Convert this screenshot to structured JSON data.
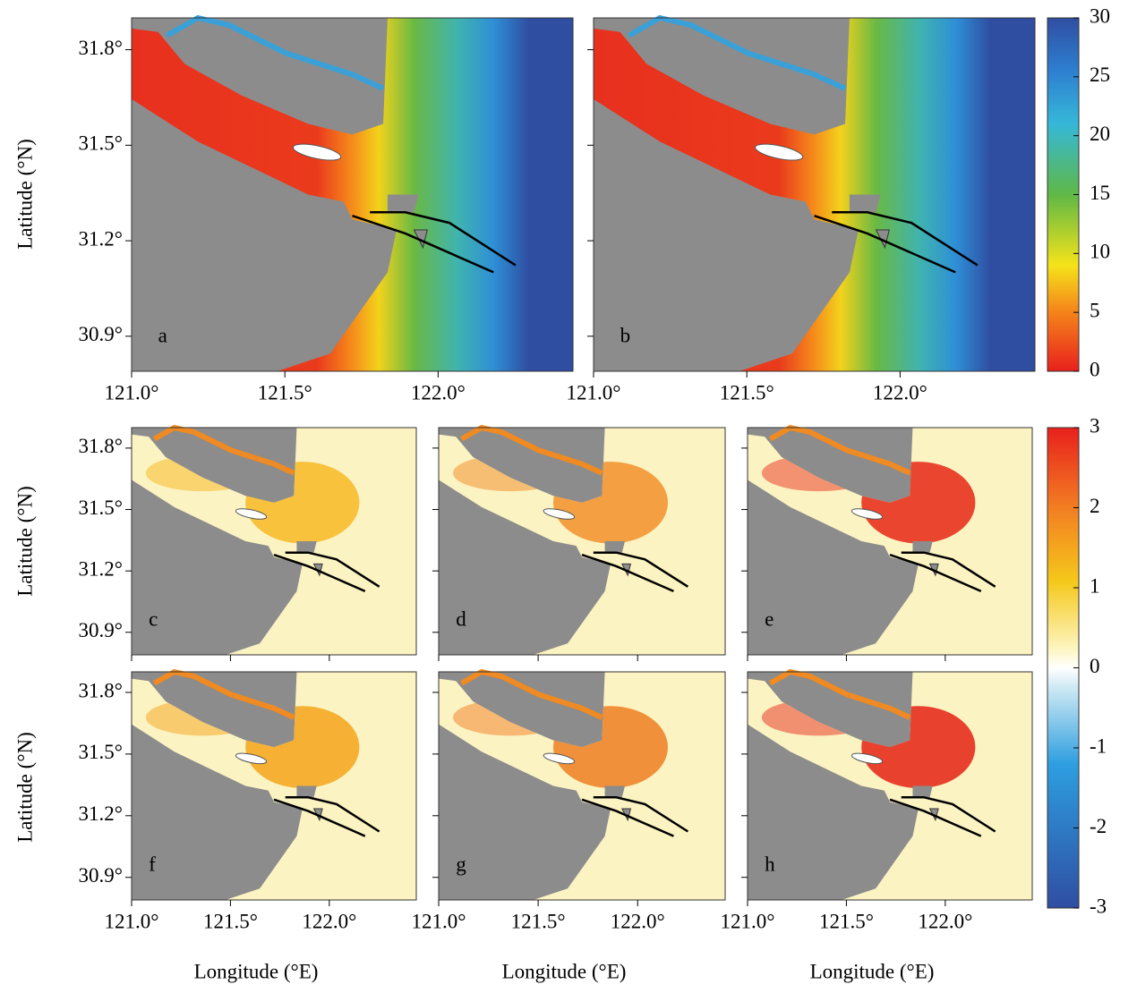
{
  "panels": [
    {
      "label": "a"
    },
    {
      "label": "b"
    },
    {
      "label": "c"
    },
    {
      "label": "d"
    },
    {
      "label": "e"
    },
    {
      "label": "f"
    },
    {
      "label": "g"
    },
    {
      "label": "h"
    }
  ],
  "lon_axis": {
    "label": "Longitude (°E)",
    "lim": [
      121.0,
      122.44
    ],
    "ticks": [
      {
        "value": 121.0,
        "label": "121.0°"
      },
      {
        "value": 121.5,
        "label": "121.5°"
      },
      {
        "value": 122.0,
        "label": "122.0°"
      }
    ]
  },
  "lat_axis": {
    "label": "Latitude (°N)",
    "lim": [
      30.79,
      31.9
    ],
    "ticks": [
      {
        "value": 30.9,
        "label": "30.9°"
      },
      {
        "value": 31.2,
        "label": "31.2°"
      },
      {
        "value": 31.5,
        "label": "31.5°"
      },
      {
        "value": 31.8,
        "label": "31.8°"
      }
    ]
  },
  "colorbars": [
    {
      "lim": [
        0,
        30
      ],
      "ticks": [
        0,
        5,
        10,
        15,
        20,
        25,
        30
      ]
    },
    {
      "lim": [
        -3,
        3
      ],
      "ticks": [
        -3,
        -2,
        -1,
        0,
        1,
        2,
        3
      ]
    }
  ]
}
